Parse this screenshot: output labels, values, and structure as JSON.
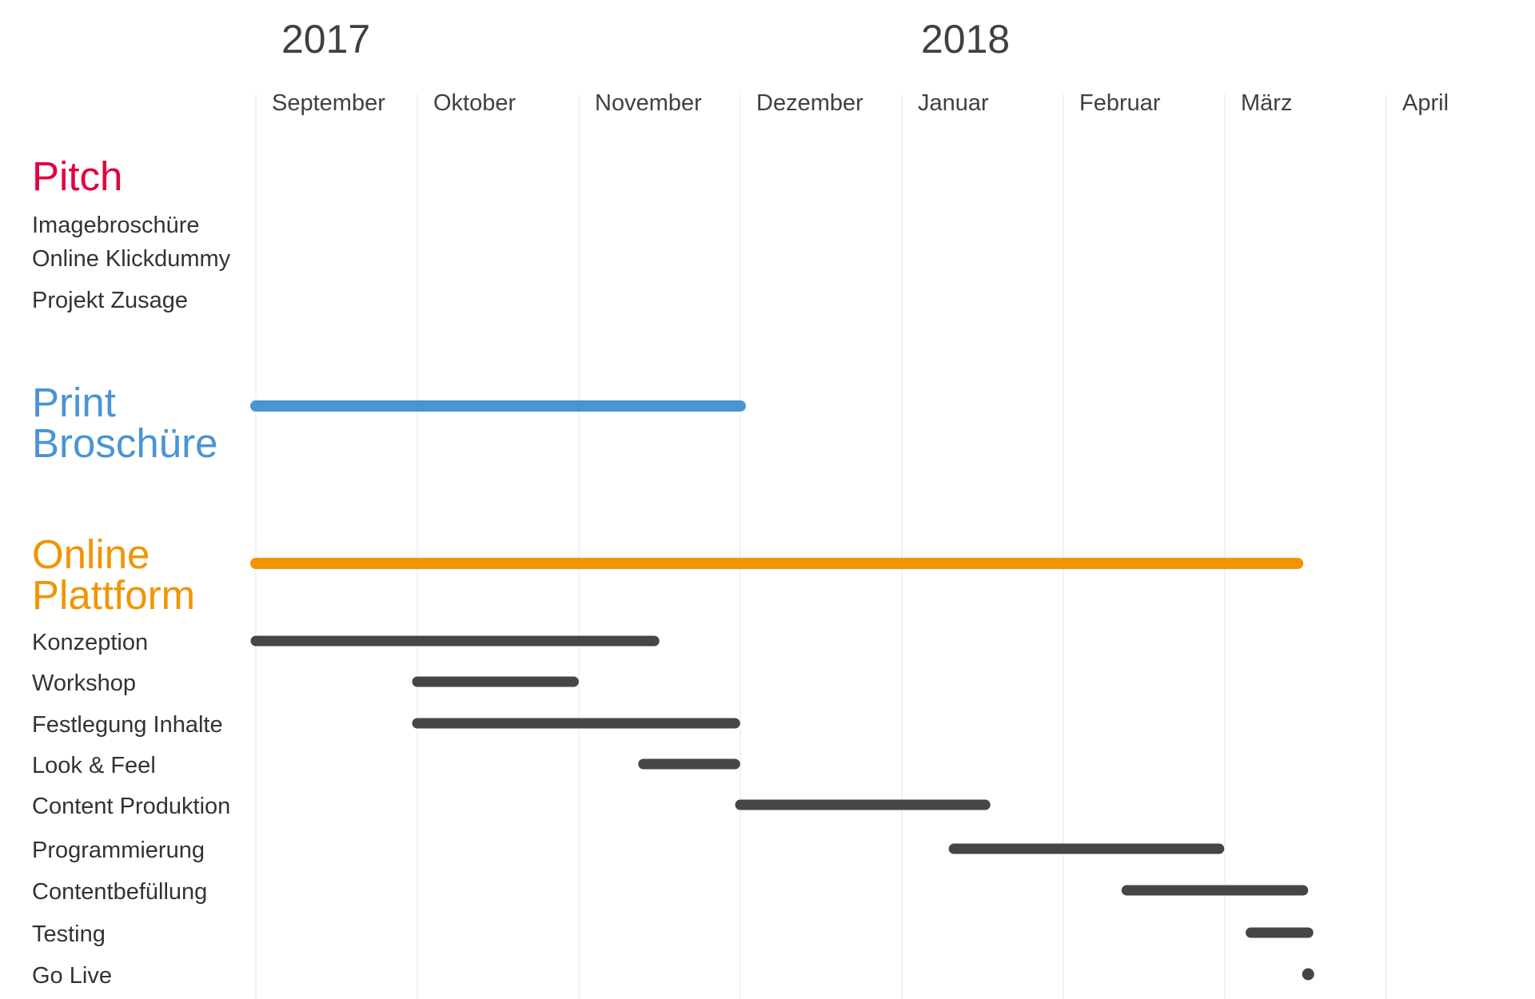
{
  "chart_data": {
    "type": "gantt",
    "years": [
      "2017",
      "2018"
    ],
    "months": [
      "September",
      "Oktober",
      "November",
      "Dezember",
      "Januar",
      "Februar",
      "März",
      "April"
    ],
    "grid": true,
    "groups": [
      {
        "title_lines": [
          "Pitch"
        ],
        "color": "#e3003a",
        "bar": null,
        "tasks": [
          {
            "name": "Imagebroschüre",
            "start": null,
            "end": null
          },
          {
            "name": "Online Klickdummy",
            "start": null,
            "end": null
          },
          {
            "name": "Projekt Zusage",
            "start": null,
            "end": null
          }
        ]
      },
      {
        "title_lines": [
          "Print",
          "Broschüre"
        ],
        "color": "#4a94d4",
        "bar": {
          "start": "2017-09-01",
          "end": "2017-12-01"
        },
        "tasks": []
      },
      {
        "title_lines": [
          "Online",
          "Plattform"
        ],
        "color": "#f29400",
        "bar": {
          "start": "2017-09-01",
          "end": "2018-03-15"
        },
        "tasks": [
          {
            "name": "Konzeption",
            "start": "2017-09-01",
            "end": "2017-11-15"
          },
          {
            "name": "Workshop",
            "start": "2017-10-01",
            "end": "2017-10-31"
          },
          {
            "name": "Festlegung Inhalte",
            "start": "2017-10-01",
            "end": "2017-11-30"
          },
          {
            "name": "Look & Feel",
            "start": "2017-11-13",
            "end": "2017-11-30"
          },
          {
            "name": "Content Produktion",
            "start": "2017-12-01",
            "end": "2018-01-17"
          },
          {
            "name": "Programmierung",
            "start": "2018-01-11",
            "end": "2018-02-28"
          },
          {
            "name": "Contentbefüllung",
            "start": "2018-02-12",
            "end": "2018-03-16"
          },
          {
            "name": "Testing",
            "start": "2018-03-06",
            "end": "2018-03-17"
          },
          {
            "name": "Go Live",
            "start": "2018-03-17",
            "end": "2018-03-17"
          }
        ]
      }
    ],
    "colors": {
      "task_bar": "#464646",
      "grid": "#e6e6e6"
    }
  }
}
